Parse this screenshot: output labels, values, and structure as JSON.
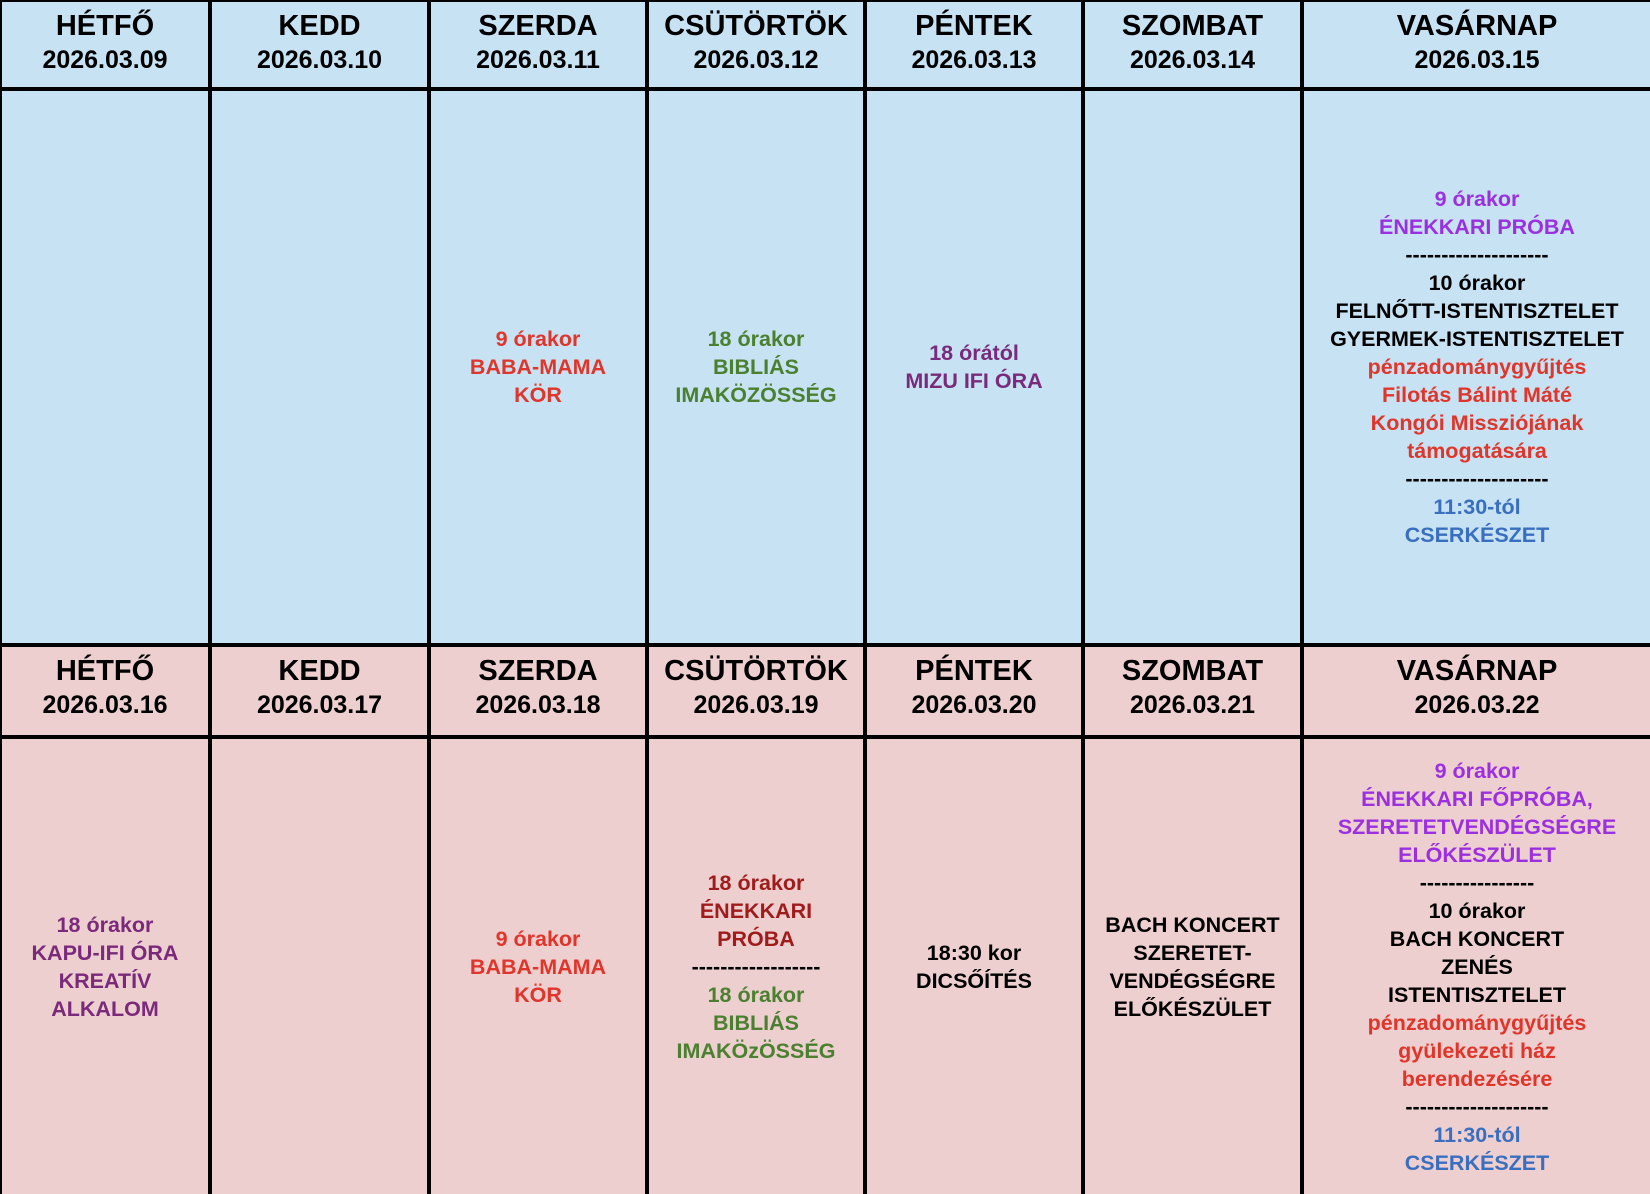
{
  "weeks": [
    {
      "background": "#c6e2f3",
      "days": [
        {
          "name": "HÉTFŐ",
          "date": "2026.03.09",
          "blocks": []
        },
        {
          "name": "KEDD",
          "date": "2026.03.10",
          "blocks": []
        },
        {
          "name": "SZERDA",
          "date": "2026.03.11",
          "blocks": [
            {
              "color": "#e0352a",
              "lines": [
                "9 órakor",
                "BABA-MAMA",
                "KÖR"
              ]
            }
          ]
        },
        {
          "name": "CSÜTÖRTÖK",
          "date": "2026.03.12",
          "blocks": [
            {
              "color": "#4a8030",
              "lines": [
                "18 órakor",
                "BIBLIÁS",
                "IMAKÖZÖSSÉG"
              ]
            }
          ]
        },
        {
          "name": "PÉNTEK",
          "date": "2026.03.13",
          "blocks": [
            {
              "color": "#7a2a7a",
              "lines": [
                "18 órától",
                "MIZU IFI ÓRA"
              ]
            }
          ]
        },
        {
          "name": "SZOMBAT",
          "date": "2026.03.14",
          "blocks": []
        },
        {
          "name": "VASÁRNAP",
          "date": "2026.03.15",
          "blocks": [
            {
              "color": "#9b30e0",
              "lines": [
                "9 órakor",
                "ÉNEKKARI PRÓBA"
              ]
            },
            {
              "color": "#000000",
              "lines": [
                "--------------------",
                "10 órakor",
                "FELNŐTT-ISTENTISZTELET",
                "GYERMEK-ISTENTISZTELET"
              ]
            },
            {
              "color": "#e0352a",
              "lines": [
                "pénzadománygyűjtés",
                "Filotás Bálint Máté",
                "Kongói Missziójának",
                "támogatására"
              ]
            },
            {
              "color": "#000000",
              "lines": [
                "--------------------"
              ]
            },
            {
              "color": "#3a6fc0",
              "lines": [
                "11:30-tól",
                "CSERKÉSZET"
              ]
            }
          ]
        }
      ]
    },
    {
      "background": "#eecfcf",
      "days": [
        {
          "name": "HÉTFŐ",
          "date": "2026.03.16",
          "blocks": [
            {
              "color": "#7a2a7a",
              "lines": [
                "18 órakor",
                "KAPU-IFI ÓRA",
                "KREATÍV",
                "ALKALOM"
              ]
            }
          ]
        },
        {
          "name": "KEDD",
          "date": "2026.03.17",
          "blocks": []
        },
        {
          "name": "SZERDA",
          "date": "2026.03.18",
          "blocks": [
            {
              "color": "#e0352a",
              "lines": [
                "9 órakor",
                "BABA-MAMA",
                "KÖR"
              ]
            }
          ]
        },
        {
          "name": "CSÜTÖRTÖK",
          "date": "2026.03.19",
          "blocks": [
            {
              "color": "#a01c1c",
              "lines": [
                "18 órakor",
                "ÉNEKKARI",
                "PRÓBA"
              ]
            },
            {
              "color": "#000000",
              "lines": [
                "------------------"
              ]
            },
            {
              "color": "#4a8030",
              "lines": [
                "18 órakor",
                "BIBLIÁS",
                "IMAKÖzÖSSÉG"
              ]
            }
          ]
        },
        {
          "name": "PÉNTEK",
          "date": "2026.03.20",
          "blocks": [
            {
              "color": "#000000",
              "lines": [
                "18:30 kor",
                "DICSŐÍTÉS"
              ]
            }
          ]
        },
        {
          "name": "SZOMBAT",
          "date": "2026.03.21",
          "blocks": [
            {
              "color": "#000000",
              "lines": [
                "BACH KONCERT",
                "SZERETET-",
                "VENDÉGSÉGRE",
                "ELŐKÉSZÜLET"
              ]
            }
          ]
        },
        {
          "name": "VASÁRNAP",
          "date": "2026.03.22",
          "blocks": [
            {
              "color": "#9b30e0",
              "lines": [
                "9 órakor",
                "ÉNEKKARI FŐPRÓBA,",
                "SZERETETVENDÉGSÉGRE",
                "ELŐKÉSZÜLET"
              ]
            },
            {
              "color": "#000000",
              "lines": [
                "----------------",
                "10 órakor",
                "BACH KONCERT",
                "ZENÉS",
                "ISTENTISZTELET"
              ]
            },
            {
              "color": "#e0352a",
              "lines": [
                "pénzadománygyűjtés",
                "gyülekezeti ház",
                "berendezésére"
              ]
            },
            {
              "color": "#000000",
              "lines": [
                "--------------------"
              ]
            },
            {
              "color": "#3a6fc0",
              "lines": [
                "11:30-tól",
                "CSERKÉSZET"
              ]
            }
          ]
        }
      ]
    }
  ]
}
